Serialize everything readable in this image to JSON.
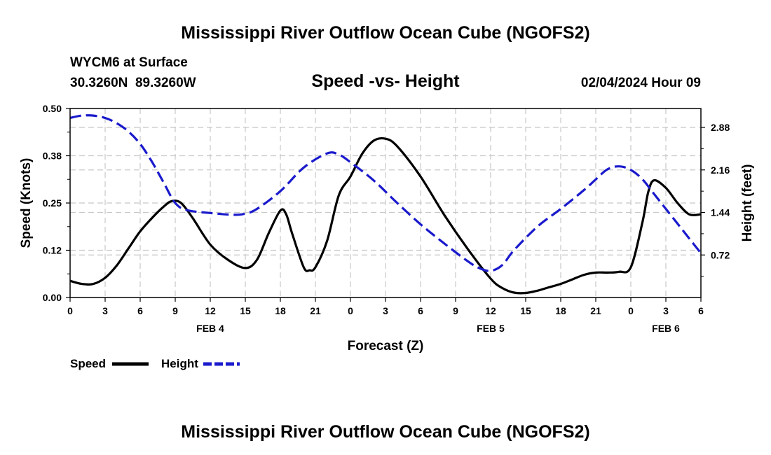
{
  "title": "Mississippi River Outflow Ocean Cube (NGOFS2)",
  "footer_title": "Mississippi River Outflow Ocean Cube (NGOFS2)",
  "station": "WYCM6 at Surface",
  "coords": "30.3260N  89.3260W",
  "chart_title": "Speed -vs- Height",
  "date_label": "02/04/2024 Hour 09",
  "legend": {
    "speed_label": "Speed",
    "height_label": "Height"
  },
  "colors": {
    "speed": "#000000",
    "height": "#1a1acc",
    "grid": "#c8c8c8"
  },
  "chart_data": {
    "type": "line",
    "title": "Speed -vs- Height",
    "xlabel": "Forecast (Z)",
    "ylabel": "Speed (Knots)",
    "y2label": "Height (feet)",
    "x_range": [
      0,
      54
    ],
    "ylim": [
      0,
      0.5
    ],
    "y2lim": [
      0,
      3.2
    ],
    "x_ticks": [
      0,
      3,
      6,
      9,
      12,
      15,
      18,
      21,
      24,
      27,
      30,
      33,
      36,
      39,
      42,
      45,
      48,
      51,
      54
    ],
    "x_tick_labels": [
      "0",
      "3",
      "6",
      "9",
      "12",
      "15",
      "18",
      "21",
      "0",
      "3",
      "6",
      "9",
      "12",
      "15",
      "18",
      "21",
      "0",
      "3",
      "6"
    ],
    "date_labels": [
      {
        "x": 12,
        "label": "FEB 4"
      },
      {
        "x": 36,
        "label": "FEB 5"
      },
      {
        "x": 51,
        "label": "FEB 6"
      }
    ],
    "y_ticks": [
      0,
      0.125,
      0.25,
      0.375,
      0.5
    ],
    "y_tick_labels": [
      "0.00",
      "0.12",
      "0.25",
      "0.38",
      "0.50"
    ],
    "y2_ticks": [
      0.72,
      1.44,
      2.16,
      2.88
    ],
    "y2_tick_labels": [
      "0.72",
      "1.44",
      "2.16",
      "2.88"
    ],
    "series": [
      {
        "name": "Speed",
        "axis": "left",
        "style": "solid",
        "x": [
          0,
          1,
          2,
          3,
          4,
          5,
          6,
          7,
          8,
          8.7,
          9.5,
          10.5,
          12,
          13.5,
          15,
          16,
          17,
          18,
          18.5,
          19,
          20,
          20.5,
          21,
          22,
          23,
          24,
          25,
          26,
          27,
          28,
          30,
          32,
          34,
          36,
          37,
          38,
          39,
          40,
          41,
          42,
          43,
          44,
          45,
          46,
          47,
          48,
          49,
          49.5,
          50,
          51,
          52,
          53,
          54
        ],
        "values": [
          0.044,
          0.036,
          0.036,
          0.052,
          0.085,
          0.13,
          0.175,
          0.21,
          0.24,
          0.255,
          0.25,
          0.21,
          0.14,
          0.1,
          0.078,
          0.1,
          0.17,
          0.23,
          0.22,
          0.17,
          0.08,
          0.072,
          0.08,
          0.15,
          0.27,
          0.32,
          0.38,
          0.415,
          0.42,
          0.4,
          0.32,
          0.22,
          0.13,
          0.05,
          0.025,
          0.013,
          0.012,
          0.018,
          0.027,
          0.036,
          0.048,
          0.06,
          0.066,
          0.066,
          0.068,
          0.08,
          0.2,
          0.28,
          0.31,
          0.29,
          0.25,
          0.22,
          0.22
        ]
      },
      {
        "name": "Height",
        "axis": "right",
        "style": "dashed",
        "x": [
          0,
          1,
          2,
          3,
          4,
          5,
          6,
          7,
          8,
          9,
          10,
          12,
          14,
          15,
          16,
          18,
          20,
          22,
          23,
          24,
          26,
          28,
          30,
          32,
          34,
          35,
          36,
          37,
          38,
          40,
          42,
          44,
          45,
          46,
          47,
          48,
          49,
          50,
          51,
          52,
          53,
          54
        ],
        "values": [
          3.04,
          3.08,
          3.08,
          3.04,
          2.95,
          2.81,
          2.6,
          2.3,
          1.95,
          1.6,
          1.48,
          1.43,
          1.4,
          1.42,
          1.5,
          1.8,
          2.2,
          2.44,
          2.42,
          2.29,
          1.98,
          1.6,
          1.24,
          0.92,
          0.62,
          0.5,
          0.45,
          0.55,
          0.8,
          1.2,
          1.5,
          1.82,
          2.0,
          2.17,
          2.22,
          2.16,
          2.0,
          1.75,
          1.5,
          1.25,
          1.0,
          0.75
        ]
      }
    ]
  }
}
